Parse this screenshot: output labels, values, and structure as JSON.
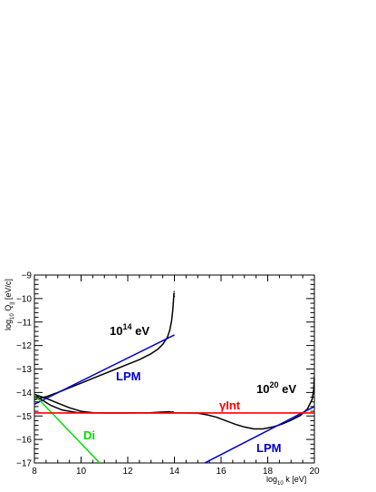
{
  "chart_data": {
    "type": "line",
    "xlabel_main": "log",
    "xlabel_sub": "10",
    "xlabel_rest": " k [eV]",
    "ylabel_main": "log",
    "ylabel_sub": "10",
    "ylabel_rest": " Q",
    "ylabel_sub2": "||",
    "ylabel_unit": " [eV/c]",
    "xlim": [
      8,
      20
    ],
    "ylim": [
      -17,
      -9
    ],
    "xticks": [
      8,
      10,
      12,
      14,
      16,
      18,
      20
    ],
    "yticks": [
      -17,
      -16,
      -15,
      -14,
      -13,
      -12,
      -11,
      -10,
      -9
    ],
    "grid": false,
    "colors": {
      "total": "#000000",
      "lpm": "#0000cc",
      "dielectric": "#00dd00",
      "gamma_int": "#ff0000",
      "lpm_label": "#0000cc",
      "di_label": "#00dd00",
      "gint_label": "#ff0000"
    },
    "series": [
      {
        "key": "total_1e14",
        "color": "#000000",
        "points": [
          [
            8.0,
            -14.08
          ],
          [
            8.5,
            -14.25
          ],
          [
            9.0,
            -14.45
          ],
          [
            9.5,
            -14.65
          ],
          [
            10.0,
            -14.8
          ],
          [
            10.5,
            -14.86
          ],
          [
            11.0,
            -14.87
          ],
          [
            12.0,
            -14.87
          ],
          [
            13.0,
            -14.86
          ],
          [
            13.5,
            -14.83
          ],
          [
            13.8,
            -14.82
          ],
          [
            13.95,
            -14.85
          ],
          [
            13.93,
            -14.8
          ]
        ]
      },
      {
        "key": "total_1e14_upper",
        "color": "#000000",
        "points": [
          [
            8.0,
            -14.3
          ],
          [
            8.5,
            -14.18
          ],
          [
            9.0,
            -14.0
          ],
          [
            9.5,
            -13.8
          ],
          [
            10.0,
            -13.6
          ],
          [
            10.5,
            -13.4
          ],
          [
            11.0,
            -13.2
          ],
          [
            11.5,
            -13.0
          ],
          [
            12.0,
            -12.8
          ],
          [
            12.5,
            -12.6
          ],
          [
            13.0,
            -12.35
          ],
          [
            13.3,
            -12.15
          ],
          [
            13.5,
            -11.95
          ],
          [
            13.7,
            -11.65
          ],
          [
            13.8,
            -11.35
          ],
          [
            13.88,
            -10.95
          ],
          [
            13.93,
            -10.5
          ],
          [
            13.96,
            -10.1
          ],
          [
            13.98,
            -9.75
          ]
        ]
      },
      {
        "key": "total_1e20",
        "color": "#000000",
        "points": [
          [
            8.0,
            -14.1
          ],
          [
            8.3,
            -14.3
          ],
          [
            8.7,
            -14.55
          ],
          [
            9.2,
            -14.75
          ],
          [
            9.8,
            -14.85
          ],
          [
            10.5,
            -14.87
          ],
          [
            11.5,
            -14.87
          ],
          [
            13.0,
            -14.87
          ],
          [
            14.5,
            -14.87
          ],
          [
            15.0,
            -14.88
          ],
          [
            15.4,
            -14.95
          ],
          [
            15.8,
            -15.05
          ],
          [
            16.2,
            -15.2
          ],
          [
            16.6,
            -15.35
          ],
          [
            17.0,
            -15.47
          ],
          [
            17.4,
            -15.55
          ],
          [
            17.8,
            -15.55
          ],
          [
            18.2,
            -15.47
          ],
          [
            18.6,
            -15.35
          ],
          [
            19.0,
            -15.18
          ],
          [
            19.4,
            -14.98
          ],
          [
            19.7,
            -14.7
          ],
          [
            19.9,
            -14.3
          ],
          [
            19.97,
            -13.9
          ],
          [
            20.0,
            -13.3
          ]
        ]
      },
      {
        "key": "lpm_1e14",
        "color": "#0000cc",
        "points": [
          [
            8.0,
            -14.5
          ],
          [
            14.0,
            -11.55
          ]
        ]
      },
      {
        "key": "lpm_1e20",
        "color": "#0000cc",
        "points": [
          [
            15.3,
            -17.0
          ],
          [
            20.0,
            -14.6
          ]
        ]
      },
      {
        "key": "dielectric",
        "color": "#00dd00",
        "points": [
          [
            8.0,
            -14.1
          ],
          [
            10.8,
            -17.0
          ]
        ]
      },
      {
        "key": "gamma_int",
        "color": "#ff0000",
        "points": [
          [
            8.0,
            -14.87
          ],
          [
            20.0,
            -14.87
          ]
        ]
      }
    ],
    "annotations": {
      "label_1e14_base": "10",
      "label_1e14_exp": "14",
      "label_1e14_unit": " eV",
      "label_1e20_base": "10",
      "label_1e20_exp": "20",
      "label_1e20_unit": " eV",
      "lpm_upper": "LPM",
      "lpm_lower": "LPM",
      "di": "Di",
      "gamma_int": "γInt"
    }
  }
}
